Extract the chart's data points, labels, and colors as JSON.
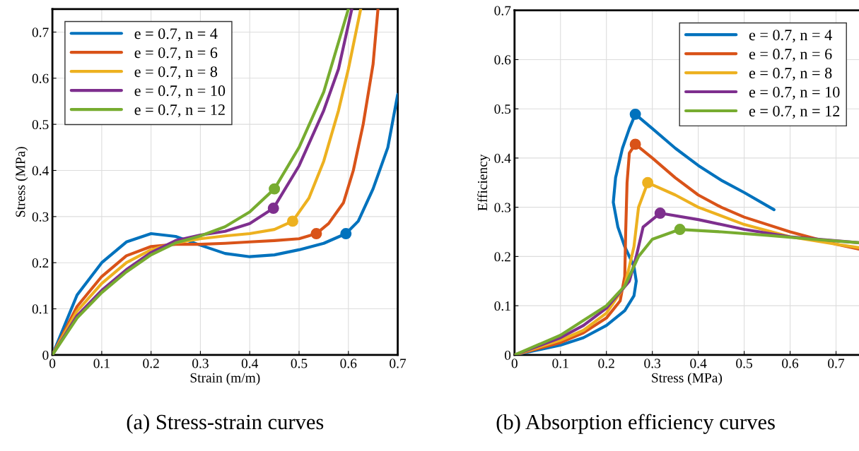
{
  "chart_data": [
    {
      "type": "line",
      "xlabel": "Strain (m/m)",
      "ylabel": "Stress (MPa)",
      "xlim": [
        0,
        0.7
      ],
      "ylim": [
        0,
        0.75
      ],
      "xticks": [
        0,
        0.1,
        0.2,
        0.3,
        0.4,
        0.5,
        0.6,
        0.7
      ],
      "yticks": [
        0,
        0.1,
        0.2,
        0.3,
        0.4,
        0.5,
        0.6,
        0.7
      ],
      "grid": true,
      "legend": "top left",
      "marker": "none",
      "line_style": "solid",
      "annotations": [
        "(a) Stress-strain curves"
      ],
      "series": [
        {
          "name": "e = 0.7, n = 4",
          "color": "#0072bd",
          "x": [
            0,
            0.05,
            0.1,
            0.15,
            0.2,
            0.25,
            0.3,
            0.35,
            0.4,
            0.45,
            0.5,
            0.55,
            0.595,
            0.62,
            0.65,
            0.68,
            0.7
          ],
          "values": [
            0,
            0.13,
            0.2,
            0.245,
            0.263,
            0.257,
            0.238,
            0.22,
            0.213,
            0.217,
            0.228,
            0.242,
            0.263,
            0.29,
            0.36,
            0.45,
            0.565
          ]
        },
        {
          "name": "e = 0.7, n = 6",
          "color": "#d95319",
          "x": [
            0,
            0.05,
            0.1,
            0.15,
            0.2,
            0.25,
            0.3,
            0.35,
            0.4,
            0.45,
            0.5,
            0.535,
            0.56,
            0.59,
            0.61,
            0.63,
            0.65,
            0.66
          ],
          "values": [
            0,
            0.105,
            0.17,
            0.215,
            0.235,
            0.24,
            0.24,
            0.242,
            0.245,
            0.248,
            0.252,
            0.263,
            0.285,
            0.33,
            0.4,
            0.5,
            0.63,
            0.75
          ]
        },
        {
          "name": "e = 0.7, n = 8",
          "color": "#edb120",
          "x": [
            0,
            0.05,
            0.1,
            0.15,
            0.2,
            0.25,
            0.3,
            0.35,
            0.4,
            0.45,
            0.487,
            0.52,
            0.55,
            0.58,
            0.6,
            0.625
          ],
          "values": [
            0,
            0.095,
            0.155,
            0.2,
            0.228,
            0.243,
            0.252,
            0.258,
            0.263,
            0.272,
            0.29,
            0.34,
            0.42,
            0.53,
            0.62,
            0.75
          ]
        },
        {
          "name": "e = 0.7, n = 10",
          "color": "#7e2f8e",
          "x": [
            0,
            0.05,
            0.1,
            0.15,
            0.2,
            0.25,
            0.3,
            0.35,
            0.4,
            0.448,
            0.5,
            0.55,
            0.58,
            0.607
          ],
          "values": [
            0,
            0.085,
            0.14,
            0.185,
            0.222,
            0.248,
            0.26,
            0.268,
            0.285,
            0.318,
            0.41,
            0.53,
            0.62,
            0.75
          ]
        },
        {
          "name": "e = 0.7, n = 12",
          "color": "#77ac30",
          "x": [
            0,
            0.05,
            0.1,
            0.15,
            0.2,
            0.25,
            0.3,
            0.35,
            0.4,
            0.45,
            0.5,
            0.55,
            0.6
          ],
          "values": [
            0,
            0.08,
            0.135,
            0.18,
            0.217,
            0.243,
            0.258,
            0.278,
            0.31,
            0.36,
            0.45,
            0.57,
            0.75
          ]
        },
        {
          "type": "scatter",
          "marker": "circle",
          "colors": [
            "#0072bd",
            "#d95319",
            "#edb120",
            "#7e2f8e",
            "#77ac30"
          ],
          "x": [
            0.595,
            0.535,
            0.487,
            0.448,
            0.45
          ],
          "values": [
            0.263,
            0.263,
            0.29,
            0.318,
            0.36
          ]
        }
      ]
    },
    {
      "type": "line",
      "xlabel": "Stress (MPa)",
      "ylabel": "Efficiency",
      "xlim": [
        0,
        0.75
      ],
      "ylim": [
        0,
        0.7
      ],
      "xticks": [
        0,
        0.1,
        0.2,
        0.3,
        0.4,
        0.5,
        0.6,
        0.7
      ],
      "yticks": [
        0,
        0.1,
        0.2,
        0.3,
        0.4,
        0.5,
        0.6,
        0.7
      ],
      "grid": true,
      "legend": "top right",
      "marker": "none",
      "line_style": "solid",
      "annotations": [
        "(b) Absorption efficiency curves"
      ],
      "series": [
        {
          "name": "e = 0.7, n = 4",
          "color": "#0072bd",
          "x": [
            0,
            0.1,
            0.15,
            0.2,
            0.24,
            0.26,
            0.265,
            0.26,
            0.24,
            0.225,
            0.215,
            0.22,
            0.235,
            0.25,
            0.263,
            0.3,
            0.35,
            0.4,
            0.45,
            0.5,
            0.565
          ],
          "values": [
            0,
            0.02,
            0.035,
            0.06,
            0.09,
            0.12,
            0.15,
            0.18,
            0.22,
            0.26,
            0.31,
            0.36,
            0.42,
            0.46,
            0.489,
            0.46,
            0.42,
            0.385,
            0.355,
            0.33,
            0.295
          ]
        },
        {
          "name": "e = 0.7, n = 6",
          "color": "#d95319",
          "x": [
            0,
            0.1,
            0.15,
            0.2,
            0.23,
            0.24,
            0.242,
            0.245,
            0.25,
            0.263,
            0.3,
            0.35,
            0.4,
            0.45,
            0.5,
            0.6,
            0.7,
            0.75
          ],
          "values": [
            0,
            0.025,
            0.045,
            0.075,
            0.11,
            0.16,
            0.25,
            0.35,
            0.41,
            0.428,
            0.4,
            0.36,
            0.325,
            0.3,
            0.28,
            0.25,
            0.225,
            0.215
          ]
        },
        {
          "name": "e = 0.7, n = 8",
          "color": "#edb120",
          "x": [
            0,
            0.1,
            0.15,
            0.2,
            0.24,
            0.26,
            0.27,
            0.29,
            0.35,
            0.4,
            0.5,
            0.6,
            0.7,
            0.75
          ],
          "values": [
            0,
            0.03,
            0.05,
            0.085,
            0.14,
            0.22,
            0.3,
            0.35,
            0.325,
            0.3,
            0.265,
            0.24,
            0.225,
            0.218
          ]
        },
        {
          "name": "e = 0.7, n = 10",
          "color": "#7e2f8e",
          "x": [
            0,
            0.1,
            0.15,
            0.2,
            0.25,
            0.265,
            0.28,
            0.317,
            0.4,
            0.5,
            0.6,
            0.7,
            0.75
          ],
          "values": [
            0,
            0.035,
            0.06,
            0.095,
            0.15,
            0.2,
            0.26,
            0.288,
            0.275,
            0.255,
            0.24,
            0.232,
            0.228
          ]
        },
        {
          "name": "e = 0.7, n = 12",
          "color": "#77ac30",
          "x": [
            0,
            0.1,
            0.15,
            0.2,
            0.24,
            0.27,
            0.3,
            0.36,
            0.45,
            0.55,
            0.65,
            0.75
          ],
          "values": [
            0,
            0.04,
            0.07,
            0.1,
            0.14,
            0.2,
            0.235,
            0.255,
            0.25,
            0.243,
            0.235,
            0.228
          ]
        },
        {
          "type": "scatter",
          "marker": "circle",
          "colors": [
            "#0072bd",
            "#d95319",
            "#edb120",
            "#7e2f8e",
            "#77ac30"
          ],
          "x": [
            0.263,
            0.263,
            0.29,
            0.317,
            0.36
          ],
          "values": [
            0.489,
            0.428,
            0.35,
            0.288,
            0.255
          ]
        }
      ]
    }
  ]
}
